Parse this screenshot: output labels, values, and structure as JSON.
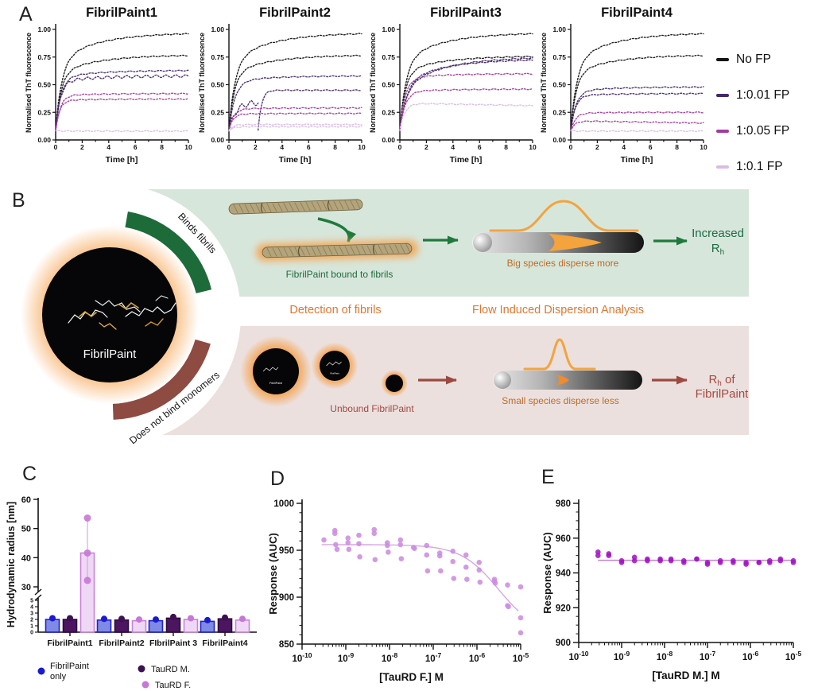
{
  "panel_labels": {
    "a": "A",
    "b": "B",
    "c": "C",
    "d": "D",
    "e": "E"
  },
  "panel_a": {
    "ylabel": "Normalised ThT fluorescence",
    "xlabel": "Time [h]",
    "ytick_labels": [
      "0.00",
      "0.25",
      "0.50",
      "0.75",
      "1.00"
    ],
    "ytick_values": [
      0,
      0.25,
      0.5,
      0.75,
      1.0
    ],
    "xticks": [
      0,
      2,
      4,
      6,
      8,
      10
    ],
    "legend": [
      {
        "label": "No FP",
        "color": "#141414"
      },
      {
        "label": "1:0.01 FP",
        "color": "#44276e"
      },
      {
        "label": "1:0.05 FP",
        "color": "#a23ba2"
      },
      {
        "label": "1:0.1 FP",
        "color": "#d9bce6"
      }
    ]
  },
  "panel_b": {
    "arc_top": "Binds fibrils",
    "arc_bottom": "Does not bind monomers",
    "hub_label": "FibrilPaint",
    "bound_caption": "FibrilPaint bound to fibrils",
    "unbound_caption": "Unbound FibrilPaint",
    "col1_title": "Detection of fibrils",
    "col2_title": "Flow Induced Dispersion Analysis",
    "big_caption": "Big species disperse more",
    "small_caption": "Small species disperse less",
    "result_top_line1": "Increased",
    "result_top_rh": "R",
    "result_top_sub": "h",
    "result_bottom_rh": "R",
    "result_bottom_sub": "h",
    "result_bottom_post": " of",
    "result_bottom_line2": "FibrilPaint",
    "colors": {
      "band_green": "#d7e6db",
      "band_pink": "#ece0de",
      "arc_green": "#1e6b3a",
      "arc_maroon": "#8e4b42",
      "text_green": "#1e6b45",
      "text_maroon": "#a34a40",
      "title_orange": "#e2762e",
      "caption_orange": "#bc6c26",
      "caption_green": "#1f6b3a",
      "peak_orange": "#f2a440",
      "glow_orange": "#f5a04a"
    }
  },
  "chart_data": [
    {
      "id": "A1",
      "type": "line",
      "title": "FibrilPaint1",
      "xlabel": "Time [h]",
      "ylabel": "Normalised ThT fluorescence",
      "xlim": [
        0,
        10
      ],
      "ylim": [
        0,
        1.0
      ],
      "curves": [
        {
          "series": 0,
          "plateau": 0.97,
          "tau": 0.45,
          "creep": 0.3
        },
        {
          "series": 0,
          "plateau": 0.77,
          "tau": 0.4,
          "creep": 0.25
        },
        {
          "series": 1,
          "plateau": 0.63,
          "tau": 0.4,
          "creep": 0.12
        },
        {
          "series": 1,
          "plateau": 0.58,
          "tau": 0.35,
          "creep": 0.1,
          "wiggle": 0.012
        },
        {
          "series": 2,
          "plateau": 0.42,
          "tau": 0.35,
          "creep": 0.05
        },
        {
          "series": 2,
          "plateau": 0.37,
          "tau": 0.3,
          "creep": 0.04
        },
        {
          "series": 3,
          "plateau": 0.08,
          "tau": 0.3
        }
      ]
    },
    {
      "id": "A2",
      "type": "line",
      "title": "FibrilPaint2",
      "xlabel": "Time [h]",
      "ylabel": "Normalised ThT fluorescence",
      "xlim": [
        0,
        10
      ],
      "ylim": [
        0,
        1.0
      ],
      "curves": [
        {
          "series": 0,
          "plateau": 0.97,
          "tau": 0.45,
          "creep": 0.3
        },
        {
          "series": 0,
          "plateau": 0.77,
          "tau": 0.4,
          "creep": 0.25
        },
        {
          "series": 1,
          "plateau": 0.58,
          "tau": 0.45,
          "creep": 0.1
        },
        {
          "series": 1,
          "plateau": 0.34,
          "tau": 0.5,
          "end": 2.2,
          "wiggle": 0.025
        },
        {
          "series": 1,
          "plateau": 0.45,
          "tau": 0.25,
          "lag": 2.2
        },
        {
          "series": 2,
          "plateau": 0.29,
          "tau": 0.35,
          "creep": 0.04
        },
        {
          "series": 2,
          "plateau": 0.24,
          "tau": 0.3,
          "creep": 0.03
        },
        {
          "series": 3,
          "plateau": 0.14,
          "tau": 0.3
        },
        {
          "series": 3,
          "plateau": 0.12,
          "tau": 0.3
        }
      ]
    },
    {
      "id": "A3",
      "type": "line",
      "title": "FibrilPaint3",
      "xlabel": "Time [h]",
      "ylabel": "Normalised ThT fluorescence",
      "xlim": [
        0,
        10
      ],
      "ylim": [
        0,
        1.0
      ],
      "curves": [
        {
          "series": 0,
          "plateau": 0.97,
          "tau": 0.45,
          "creep": 0.3
        },
        {
          "series": 0,
          "plateau": 0.76,
          "tau": 0.4,
          "creep": 0.22
        },
        {
          "series": 1,
          "plateau": 0.75,
          "tau": 0.45,
          "creep": 0.45
        },
        {
          "series": 1,
          "plateau": 0.73,
          "tau": 0.5,
          "creep": 0.35
        },
        {
          "series": 2,
          "plateau": 0.6,
          "tau": 0.4,
          "creep": 0.08
        },
        {
          "series": 2,
          "plateau": 0.46,
          "tau": 0.4,
          "creep": 0.06
        },
        {
          "series": 3,
          "plateau": 0.33,
          "tau": 0.35,
          "decay": 0.06
        }
      ]
    },
    {
      "id": "A4",
      "type": "line",
      "title": "FibrilPaint4",
      "xlabel": "Time [h]",
      "ylabel": "Normalised ThT fluorescence",
      "xlim": [
        0,
        10
      ],
      "ylim": [
        0,
        1.0
      ],
      "curves": [
        {
          "series": 0,
          "plateau": 0.97,
          "tau": 0.45,
          "creep": 0.3
        },
        {
          "series": 0,
          "plateau": 0.77,
          "tau": 0.4,
          "creep": 0.25
        },
        {
          "series": 1,
          "plateau": 0.48,
          "tau": 0.4,
          "creep": 0.1
        },
        {
          "series": 1,
          "plateau": 0.42,
          "tau": 0.35,
          "creep": 0.05
        },
        {
          "series": 2,
          "plateau": 0.25,
          "tau": 0.35,
          "creep": 0.04
        },
        {
          "series": 2,
          "plateau": 0.17,
          "tau": 0.3,
          "decay": 0.1
        },
        {
          "series": 3,
          "plateau": 0.08,
          "tau": 0.3
        }
      ]
    },
    {
      "id": "C",
      "type": "bar",
      "ylabel": "Hydrodynamic radius [nm]",
      "categories": [
        "FibrilPaint1",
        "FibrilPaint2",
        "FIbrilPaint 3",
        "FibrilPaint4"
      ],
      "ybreak": {
        "ticks_low": [
          0,
          1,
          2,
          3,
          4,
          5
        ],
        "ticks_high": [
          30,
          40,
          50,
          60
        ]
      },
      "series": [
        {
          "name": "FibrilPaint only",
          "edge": "#2121c8",
          "fill": "#7f8ae6",
          "dot": "#1a1ad0",
          "values": [
            2.0,
            1.9,
            1.8,
            1.7
          ]
        },
        {
          "name": "TauRD M.",
          "edge": "#2f0a40",
          "fill": "#4b1560",
          "dot": "#3d1052",
          "values": [
            2.0,
            1.9,
            2.2,
            2.1
          ]
        },
        {
          "name": "TauRD F.",
          "edge": "#c883d6",
          "fill": "#efd8f6",
          "dot": "#c678d6",
          "values": [
            41.6,
            1.8,
            2.0,
            1.9
          ],
          "error": [
            [
              32.2,
              53.6
            ],
            null,
            null,
            null
          ],
          "points": [
            [
              53.6,
              41.6,
              32.2
            ],
            null,
            null,
            null
          ]
        }
      ],
      "legend": [
        {
          "name": "FibrilPaint only",
          "lines": [
            "FibrilPaint",
            "only"
          ],
          "dot": "#1a1ad0"
        },
        {
          "name": "TauRD M.",
          "lines": [
            "TauRD M."
          ],
          "dot": "#3d1052"
        },
        {
          "name": "TauRD F.",
          "lines": [
            "TauRD F."
          ],
          "dot": "#c678d6"
        }
      ]
    },
    {
      "id": "D",
      "type": "scatter",
      "xlabel": "[TauRD F.] M",
      "ylabel": "Response (AUC)",
      "x_log_range": [
        -10,
        -5
      ],
      "xtick_exponents": [
        -10,
        -9,
        -8,
        -7,
        -6,
        -5
      ],
      "ylim": [
        850,
        1000
      ],
      "yticks": [
        850,
        900,
        950,
        1000
      ],
      "y_minor_step": 10,
      "color": "#cd8ce0",
      "fit_color": "#d7a6e4",
      "fit": {
        "top": 956,
        "bottom": 860,
        "logec50": -5.5,
        "hill": 1
      },
      "points": [
        [
          -9.5,
          961
        ],
        [
          -9.25,
          971
        ],
        [
          -9.25,
          968
        ],
        [
          -9.23,
          956
        ],
        [
          -9.2,
          951
        ],
        [
          -8.95,
          963
        ],
        [
          -8.95,
          958
        ],
        [
          -8.93,
          951
        ],
        [
          -8.7,
          966
        ],
        [
          -8.7,
          957
        ],
        [
          -8.68,
          943
        ],
        [
          -8.35,
          972
        ],
        [
          -8.35,
          968
        ],
        [
          -8.33,
          940
        ],
        [
          -8.05,
          958
        ],
        [
          -8.05,
          955
        ],
        [
          -8.03,
          948
        ],
        [
          -7.75,
          961
        ],
        [
          -7.75,
          956
        ],
        [
          -7.73,
          941
        ],
        [
          -7.45,
          953
        ],
        [
          -7.43,
          952
        ],
        [
          -7.15,
          955
        ],
        [
          -7.15,
          945
        ],
        [
          -7.13,
          928
        ],
        [
          -6.85,
          947
        ],
        [
          -6.85,
          944
        ],
        [
          -6.83,
          928
        ],
        [
          -6.55,
          949
        ],
        [
          -6.55,
          938
        ],
        [
          -6.53,
          920
        ],
        [
          -6.25,
          945
        ],
        [
          -6.25,
          932
        ],
        [
          -6.23,
          919
        ],
        [
          -5.95,
          937
        ],
        [
          -5.95,
          929
        ],
        [
          -5.93,
          916
        ],
        [
          -5.6,
          919
        ],
        [
          -5.6,
          917
        ],
        [
          -5.58,
          915
        ],
        [
          -5.3,
          913
        ],
        [
          -5.3,
          891
        ],
        [
          -5.28,
          890
        ],
        [
          -5.0,
          911
        ],
        [
          -5.0,
          878
        ],
        [
          -5.0,
          862
        ]
      ]
    },
    {
      "id": "E",
      "type": "scatter",
      "xlabel": "[TauRD M.] M",
      "ylabel": "Response (AUC)",
      "x_log_range": [
        -10,
        -5
      ],
      "xtick_exponents": [
        -10,
        -9,
        -8,
        -7,
        -6,
        -5
      ],
      "ylim": [
        900,
        980
      ],
      "yticks": [
        900,
        920,
        940,
        960,
        980
      ],
      "y_minor_step": 5,
      "color": "#a316c4",
      "fit_color": "#c479d4",
      "fit": {
        "flat": 947.3
      },
      "points": [
        [
          -9.55,
          952
        ],
        [
          -9.55,
          950
        ],
        [
          -9.3,
          951
        ],
        [
          -9.3,
          950
        ],
        [
          -9.0,
          947
        ],
        [
          -9.0,
          946
        ],
        [
          -8.7,
          949
        ],
        [
          -8.7,
          947
        ],
        [
          -8.4,
          948
        ],
        [
          -8.4,
          947
        ],
        [
          -8.1,
          948
        ],
        [
          -8.1,
          947
        ],
        [
          -7.85,
          948
        ],
        [
          -7.85,
          947
        ],
        [
          -7.55,
          947
        ],
        [
          -7.55,
          946
        ],
        [
          -7.25,
          948
        ],
        [
          -7.25,
          948
        ],
        [
          -7.0,
          946
        ],
        [
          -7.0,
          945
        ],
        [
          -6.7,
          947
        ],
        [
          -6.7,
          946
        ],
        [
          -6.4,
          947
        ],
        [
          -6.4,
          946
        ],
        [
          -6.1,
          946
        ],
        [
          -6.1,
          945
        ],
        [
          -5.8,
          946
        ],
        [
          -5.8,
          946
        ],
        [
          -5.55,
          947
        ],
        [
          -5.55,
          946
        ],
        [
          -5.3,
          948
        ],
        [
          -5.3,
          947
        ],
        [
          -5.0,
          947
        ],
        [
          -5.0,
          946
        ]
      ]
    }
  ]
}
